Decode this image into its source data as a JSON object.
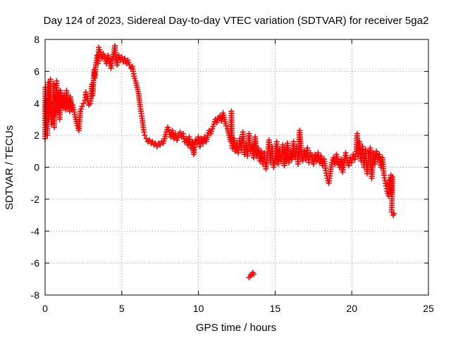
{
  "chart_data": {
    "type": "scatter",
    "title": "Day 124 of 2023, Sidereal Day-to-day VTEC variation (SDTVAR) for receiver 5ga2",
    "xlabel": "GPS time / hours",
    "ylabel": "SDTVAR / TECUs",
    "xlim": [
      0,
      25
    ],
    "ylim": [
      -8,
      8
    ],
    "x_ticks": [
      0,
      5,
      10,
      15,
      20,
      25
    ],
    "y_ticks": [
      -8,
      -6,
      -4,
      -2,
      0,
      2,
      4,
      6,
      8
    ],
    "x_tick_labels": [
      "0",
      "5",
      "10",
      "15",
      "20",
      "25"
    ],
    "y_tick_labels": [
      "-8",
      "-6",
      "-4",
      "-2",
      "0",
      "2",
      "4",
      "6",
      "8"
    ],
    "grid": true,
    "marker": "plus",
    "series": [
      {
        "name": "SDTVAR",
        "color": "#ff0000",
        "points": [
          [
            0.0,
            1.8
          ],
          [
            0.0,
            3.5
          ],
          [
            0.02,
            5.0
          ],
          [
            0.05,
            2.5
          ],
          [
            0.1,
            4.2
          ],
          [
            0.15,
            2.0
          ],
          [
            0.2,
            5.3
          ],
          [
            0.25,
            3.0
          ],
          [
            0.3,
            3.6
          ],
          [
            0.35,
            5.5
          ],
          [
            0.4,
            2.7
          ],
          [
            0.45,
            4.0
          ],
          [
            0.5,
            3.2
          ],
          [
            0.55,
            5.2
          ],
          [
            0.6,
            2.5
          ],
          [
            0.65,
            4.5
          ],
          [
            0.7,
            3.3
          ],
          [
            0.75,
            5.4
          ],
          [
            0.8,
            4.0
          ],
          [
            0.85,
            3.5
          ],
          [
            0.9,
            4.6
          ],
          [
            0.95,
            3.0
          ],
          [
            1.0,
            4.8
          ],
          [
            1.05,
            4.3
          ],
          [
            1.1,
            3.8
          ],
          [
            1.15,
            4.4
          ],
          [
            1.2,
            3.7
          ],
          [
            1.25,
            4.5
          ],
          [
            1.3,
            4.0
          ],
          [
            1.35,
            3.6
          ],
          [
            1.4,
            4.8
          ],
          [
            1.45,
            4.2
          ],
          [
            1.5,
            3.8
          ],
          [
            1.55,
            4.1
          ],
          [
            1.6,
            3.5
          ],
          [
            1.65,
            4.4
          ],
          [
            1.7,
            4.0
          ],
          [
            1.75,
            3.6
          ],
          [
            1.8,
            3.9
          ],
          [
            2.0,
            3.0
          ],
          [
            2.1,
            2.6
          ],
          [
            2.2,
            2.3
          ],
          [
            2.3,
            3.5
          ],
          [
            2.4,
            3.8
          ],
          [
            2.5,
            4.0
          ],
          [
            2.6,
            4.2
          ],
          [
            2.65,
            4.7
          ],
          [
            2.75,
            4.3
          ],
          [
            2.85,
            3.9
          ],
          [
            2.95,
            4.0
          ],
          [
            3.0,
            4.3
          ],
          [
            3.05,
            5.2
          ],
          [
            3.1,
            4.5
          ],
          [
            3.2,
            6.1
          ],
          [
            3.25,
            5.6
          ],
          [
            3.3,
            6.4
          ],
          [
            3.4,
            7.0
          ],
          [
            3.45,
            6.5
          ],
          [
            3.5,
            7.5
          ],
          [
            3.6,
            7.2
          ],
          [
            3.7,
            6.8
          ],
          [
            3.8,
            7.1
          ],
          [
            3.9,
            6.9
          ],
          [
            4.0,
            6.5
          ],
          [
            4.1,
            7.0
          ],
          [
            4.2,
            6.6
          ],
          [
            4.3,
            6.2
          ],
          [
            4.4,
            6.8
          ],
          [
            4.5,
            7.2
          ],
          [
            4.55,
            7.6
          ],
          [
            4.6,
            6.9
          ],
          [
            4.7,
            6.4
          ],
          [
            4.8,
            7.0
          ],
          [
            4.9,
            6.7
          ],
          [
            5.0,
            6.9
          ],
          [
            5.1,
            6.6
          ],
          [
            5.2,
            6.8
          ],
          [
            5.3,
            6.5
          ],
          [
            5.4,
            6.7
          ],
          [
            5.5,
            6.4
          ],
          [
            5.6,
            6.2
          ],
          [
            5.7,
            6.3
          ],
          [
            5.8,
            5.7
          ],
          [
            5.9,
            5.4
          ],
          [
            6.0,
            5.0
          ],
          [
            6.1,
            4.6
          ],
          [
            6.15,
            4.2
          ],
          [
            6.2,
            3.8
          ],
          [
            6.25,
            3.5
          ],
          [
            6.3,
            3.2
          ],
          [
            6.35,
            2.9
          ],
          [
            6.4,
            2.5
          ],
          [
            6.45,
            2.2
          ],
          [
            6.5,
            2.0
          ],
          [
            6.6,
            1.8
          ],
          [
            6.7,
            1.6
          ],
          [
            6.8,
            1.7
          ],
          [
            6.9,
            1.5
          ],
          [
            7.0,
            1.6
          ],
          [
            7.1,
            1.4
          ],
          [
            7.2,
            1.5
          ],
          [
            7.3,
            1.3
          ],
          [
            7.4,
            1.5
          ],
          [
            7.5,
            1.4
          ],
          [
            7.6,
            1.6
          ],
          [
            7.7,
            1.5
          ],
          [
            7.8,
            1.8
          ],
          [
            7.9,
            2.2
          ],
          [
            8.0,
            2.5
          ],
          [
            8.1,
            2.2
          ],
          [
            8.2,
            1.9
          ],
          [
            8.3,
            2.3
          ],
          [
            8.4,
            1.8
          ],
          [
            8.5,
            2.1
          ],
          [
            8.6,
            1.7
          ],
          [
            8.7,
            2.0
          ],
          [
            8.8,
            2.2
          ],
          [
            8.9,
            1.9
          ],
          [
            9.0,
            2.1
          ],
          [
            9.1,
            1.6
          ],
          [
            9.2,
            1.8
          ],
          [
            9.3,
            1.4
          ],
          [
            9.4,
            1.9
          ],
          [
            9.5,
            1.2
          ],
          [
            9.6,
            1.6
          ],
          [
            9.7,
            0.8
          ],
          [
            9.8,
            1.7
          ],
          [
            9.9,
            1.5
          ],
          [
            10.0,
            1.9
          ],
          [
            10.1,
            1.3
          ],
          [
            10.2,
            1.8
          ],
          [
            10.3,
            1.5
          ],
          [
            10.4,
            1.9
          ],
          [
            10.5,
            1.6
          ],
          [
            10.6,
            2.0
          ],
          [
            10.7,
            2.3
          ],
          [
            10.8,
            2.1
          ],
          [
            10.9,
            2.4
          ],
          [
            11.0,
            2.7
          ],
          [
            11.1,
            3.0
          ],
          [
            11.2,
            2.8
          ],
          [
            11.3,
            3.1
          ],
          [
            11.4,
            3.2
          ],
          [
            11.5,
            2.9
          ],
          [
            11.6,
            3.4
          ],
          [
            11.7,
            3.0
          ],
          [
            11.8,
            2.6
          ],
          [
            11.9,
            2.4
          ],
          [
            12.0,
            2.0
          ],
          [
            12.1,
            1.6
          ],
          [
            12.15,
            3.5
          ],
          [
            12.2,
            1.2
          ],
          [
            12.3,
            1.8
          ],
          [
            12.4,
            1.0
          ],
          [
            12.5,
            1.5
          ],
          [
            12.6,
            0.9
          ],
          [
            12.7,
            1.8
          ],
          [
            12.8,
            1.1
          ],
          [
            12.9,
            2.2
          ],
          [
            13.0,
            0.8
          ],
          [
            13.1,
            1.5
          ],
          [
            13.2,
            0.7
          ],
          [
            13.3,
            2.1
          ],
          [
            13.4,
            1.0
          ],
          [
            13.5,
            1.4
          ],
          [
            13.6,
            0.6
          ],
          [
            13.7,
            1.9
          ],
          [
            13.8,
            0.7
          ],
          [
            13.9,
            1.2
          ],
          [
            14.0,
            0.4
          ],
          [
            14.1,
            1.0
          ],
          [
            14.2,
            0.2
          ],
          [
            14.3,
            0.9
          ],
          [
            14.4,
            -0.1
          ],
          [
            14.5,
            0.6
          ],
          [
            14.6,
            1.7
          ],
          [
            14.7,
            0.3
          ],
          [
            14.8,
            1.3
          ],
          [
            14.9,
            0.0
          ],
          [
            15.0,
            0.7
          ],
          [
            15.1,
            1.6
          ],
          [
            15.2,
            0.2
          ],
          [
            15.3,
            1.1
          ],
          [
            15.4,
            0.4
          ],
          [
            15.5,
            1.4
          ],
          [
            15.6,
            0.1
          ],
          [
            15.7,
            0.9
          ],
          [
            15.8,
            1.5
          ],
          [
            15.9,
            0.3
          ],
          [
            16.0,
            1.0
          ],
          [
            16.1,
            0.5
          ],
          [
            16.2,
            1.6
          ],
          [
            16.3,
            0.6
          ],
          [
            16.4,
            1.3
          ],
          [
            16.5,
            0.2
          ],
          [
            16.6,
            2.3
          ],
          [
            16.7,
            1.1
          ],
          [
            16.8,
            0.4
          ],
          [
            16.9,
            1.0
          ],
          [
            17.0,
            0.5
          ],
          [
            17.1,
            1.2
          ],
          [
            17.2,
            0.3
          ],
          [
            17.3,
            0.9
          ],
          [
            17.4,
            0.6
          ],
          [
            17.5,
            0.2
          ],
          [
            17.6,
            0.8
          ],
          [
            17.7,
            0.4
          ],
          [
            17.8,
            0.9
          ],
          [
            17.9,
            0.3
          ],
          [
            18.0,
            0.7
          ],
          [
            18.1,
            0.1
          ],
          [
            18.2,
            0.5
          ],
          [
            18.3,
            -0.2
          ],
          [
            18.4,
            -0.7
          ],
          [
            18.5,
            -1.0
          ],
          [
            18.6,
            -0.4
          ],
          [
            18.7,
            0.3
          ],
          [
            18.8,
            0.6
          ],
          [
            18.9,
            0.2
          ],
          [
            19.0,
            0.8
          ],
          [
            19.1,
            0.4
          ],
          [
            19.2,
            0.0
          ],
          [
            19.3,
            0.5
          ],
          [
            19.4,
            -0.3
          ],
          [
            19.5,
            0.3
          ],
          [
            19.6,
            0.9
          ],
          [
            19.7,
            0.4
          ],
          [
            19.8,
            0.1
          ],
          [
            19.9,
            0.6
          ],
          [
            20.0,
            0.3
          ],
          [
            20.1,
            0.8
          ],
          [
            20.2,
            0.5
          ],
          [
            20.3,
            1.0
          ],
          [
            20.35,
            2.1
          ],
          [
            20.4,
            0.7
          ],
          [
            20.5,
            1.6
          ],
          [
            20.6,
            0.4
          ],
          [
            20.7,
            1.3
          ],
          [
            20.8,
            0.0
          ],
          [
            20.9,
            1.1
          ],
          [
            21.0,
            -0.4
          ],
          [
            21.1,
            0.7
          ],
          [
            21.2,
            1.2
          ],
          [
            21.3,
            -0.7
          ],
          [
            21.4,
            0.9
          ],
          [
            21.5,
            0.2
          ],
          [
            21.6,
            1.0
          ],
          [
            21.7,
            0.5
          ],
          [
            21.8,
            0.8
          ],
          [
            21.9,
            0.0
          ],
          [
            22.0,
            0.6
          ],
          [
            22.1,
            -0.5
          ],
          [
            22.2,
            -1.0
          ],
          [
            22.3,
            -1.5
          ],
          [
            22.4,
            -1.8
          ],
          [
            22.45,
            -0.8
          ],
          [
            22.5,
            -1.2
          ],
          [
            22.55,
            -0.5
          ],
          [
            22.6,
            -1.6
          ],
          [
            22.65,
            -0.6
          ],
          [
            22.6,
            -2.8
          ],
          [
            22.7,
            -3.0
          ],
          [
            22.75,
            -2.9
          ],
          [
            13.3,
            -6.9
          ],
          [
            13.4,
            -6.8
          ],
          [
            13.45,
            -6.7
          ],
          [
            13.55,
            -6.6
          ],
          [
            13.6,
            -6.7
          ]
        ]
      }
    ]
  }
}
